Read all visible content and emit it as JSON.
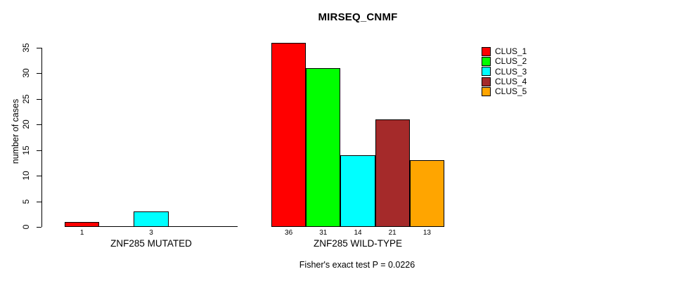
{
  "chart_data": {
    "type": "bar",
    "title": "MIRSEQ_CNMF",
    "ylabel": "number of cases",
    "ylim": [
      0,
      35
    ],
    "yticks": [
      0,
      5,
      10,
      15,
      20,
      25,
      30,
      35
    ],
    "grid": false,
    "legend_position": "right",
    "series_labels": [
      "CLUS_1",
      "CLUS_2",
      "CLUS_3",
      "CLUS_4",
      "CLUS_5"
    ],
    "series_colors": [
      "#FF0000",
      "#00FF00",
      "#00FFFF",
      "#A52A2A",
      "#FFA500"
    ],
    "groups": [
      {
        "label": "ZNF285 MUTATED",
        "values": [
          1,
          0,
          3,
          0,
          0
        ]
      },
      {
        "label": "ZNF285 WILD-TYPE",
        "values": [
          36,
          31,
          14,
          21,
          13
        ]
      }
    ],
    "bar_value_labels_visible_when": "value > 0",
    "annotation": "Fisher's exact test P = 0.0226"
  }
}
